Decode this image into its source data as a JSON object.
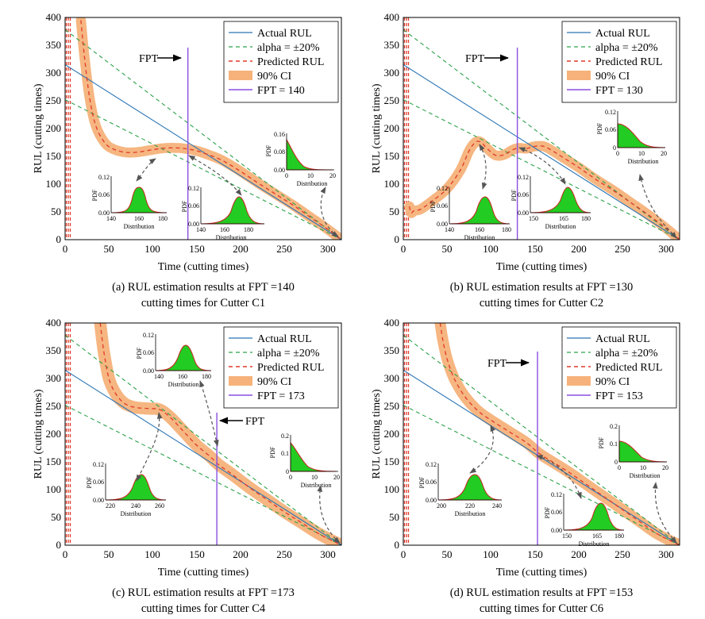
{
  "figure": {
    "colors": {
      "actual": "#2a75b5",
      "bounds": "#2ca24a",
      "predicted": "#e03a2a",
      "ci": "#f6b27a",
      "fpt": "#8a4fe0",
      "pdf_fill": "#22cc22",
      "pdf_line": "#cc2222",
      "arrow": "#555555"
    },
    "common": {
      "xlabel": "Time (cutting times)",
      "ylabel": "RUL (cutting times)",
      "xticks": [
        "0",
        "50",
        "100",
        "150",
        "200",
        "250",
        "300"
      ],
      "yticks": [
        "0",
        "50",
        "100",
        "150",
        "200",
        "250",
        "300",
        "350",
        "400"
      ],
      "inset_ylabel": "PDF",
      "inset_xlabel": "Distribution",
      "fpt_label": "FPT"
    },
    "legend": {
      "actual": "Actual RUL",
      "bounds": "alpha = ±20%",
      "predicted": "Predicted RUL",
      "ci": "90% CI"
    }
  },
  "chart_data": [
    {
      "type": "line",
      "title": "(a) RUL estimation results at FPT =140",
      "subtitle": "cutting times for Cutter C1",
      "xlabel": "Time (cutting times)",
      "ylabel": "RUL (cutting times)",
      "xlim": [
        0,
        315
      ],
      "ylim": [
        0,
        400
      ],
      "fpt": 140,
      "fpt_legend": "FPT = 140",
      "actual_rul": {
        "x": [
          0,
          315
        ],
        "y": [
          315,
          0
        ]
      },
      "upper_bound": {
        "x": [
          0,
          315
        ],
        "y": [
          378,
          0
        ]
      },
      "lower_bound": {
        "x": [
          0,
          315
        ],
        "y": [
          252,
          0
        ]
      },
      "predicted_rul": {
        "x": [
          18,
          22,
          28,
          35,
          45,
          55,
          70,
          85,
          100,
          115,
          130,
          140,
          150,
          165,
          180,
          200,
          220,
          240,
          260,
          280,
          300,
          315
        ],
        "y": [
          395,
          330,
          255,
          205,
          175,
          163,
          157,
          158,
          162,
          165,
          165,
          163,
          160,
          152,
          142,
          123,
          102,
          82,
          62,
          40,
          18,
          0
        ]
      },
      "ci_halfwidth": 9,
      "insets": [
        {
          "label": "left",
          "ymax": "0.12",
          "ymid": "0.06",
          "ymin": "0.00",
          "xticks": [
            "140",
            "160",
            "180"
          ],
          "skew": false
        },
        {
          "label": "mid",
          "ymax": "0.12",
          "ymid": "0.06",
          "ymin": "0.00",
          "xticks": [
            "140",
            "160",
            "180"
          ],
          "skew": false
        },
        {
          "label": "right",
          "ymax": "0.16",
          "ymid": "0.08",
          "ymin": "0.00",
          "xticks": [
            "0",
            "10",
            "20"
          ],
          "skew": true
        }
      ]
    },
    {
      "type": "line",
      "title": "(b) RUL estimation results at FPT =130",
      "subtitle": "cutting times for Cutter C2",
      "xlabel": "Time (cutting times)",
      "ylabel": "RUL (cutting times)",
      "xlim": [
        0,
        315
      ],
      "ylim": [
        0,
        400
      ],
      "fpt": 130,
      "fpt_legend": "FPT = 130",
      "actual_rul": {
        "x": [
          0,
          315
        ],
        "y": [
          315,
          0
        ]
      },
      "upper_bound": {
        "x": [
          0,
          315
        ],
        "y": [
          378,
          0
        ]
      },
      "lower_bound": {
        "x": [
          0,
          315
        ],
        "y": [
          252,
          0
        ]
      },
      "predicted_rul": {
        "x": [
          7,
          9,
          12,
          20,
          35,
          50,
          65,
          75,
          82,
          88,
          95,
          105,
          115,
          125,
          132,
          140,
          150,
          160,
          170,
          180,
          200,
          220,
          240,
          260,
          280,
          300,
          315
        ],
        "y": [
          60,
          48,
          52,
          55,
          72,
          92,
          125,
          160,
          175,
          176,
          165,
          152,
          153,
          162,
          165,
          164,
          168,
          168,
          160,
          150,
          130,
          108,
          88,
          66,
          44,
          20,
          0
        ]
      },
      "ci_halfwidth": 9,
      "insets": [
        {
          "label": "left",
          "ymax": "0.12",
          "ymid": "0.06",
          "ymin": "0.00",
          "xticks": [
            "140",
            "160",
            "180"
          ],
          "skew": false
        },
        {
          "label": "mid",
          "ymax": "0.12",
          "ymid": "0.06",
          "ymin": "0.00",
          "xticks": [
            "150",
            "165",
            "180"
          ],
          "skew": false
        },
        {
          "label": "right",
          "ymax": "0.12",
          "ymid": "0.06",
          "ymin": "0",
          "xticks": [
            "0",
            "10",
            "20"
          ],
          "skew": true
        }
      ]
    },
    {
      "type": "line",
      "title": "(c) RUL estimation results at FPT =173",
      "subtitle": "cutting times for Cutter C4",
      "xlabel": "Time (cutting times)",
      "ylabel": "RUL (cutting times)",
      "xlim": [
        0,
        315
      ],
      "ylim": [
        0,
        400
      ],
      "fpt": 173,
      "fpt_legend": "FPT = 173",
      "actual_rul": {
        "x": [
          0,
          315
        ],
        "y": [
          315,
          0
        ]
      },
      "upper_bound": {
        "x": [
          0,
          315
        ],
        "y": [
          378,
          0
        ]
      },
      "lower_bound": {
        "x": [
          0,
          315
        ],
        "y": [
          252,
          0
        ]
      },
      "predicted_rul": {
        "x": [
          40,
          44,
          50,
          58,
          68,
          80,
          95,
          108,
          120,
          135,
          150,
          165,
          175,
          190,
          210,
          230,
          250,
          270,
          290,
          315
        ],
        "y": [
          400,
          350,
          300,
          272,
          255,
          248,
          246,
          244,
          230,
          205,
          180,
          160,
          145,
          128,
          104,
          82,
          60,
          40,
          20,
          0
        ]
      },
      "ci_halfwidth": 11,
      "insets": [
        {
          "label": "left",
          "ymax": "0.12",
          "ymid": "0.06",
          "ymin": "0.00",
          "xticks": [
            "220",
            "240",
            "260"
          ],
          "skew": false
        },
        {
          "label": "top",
          "ymax": "0.12",
          "ymid": "0.06",
          "ymin": "0.00",
          "xticks": [
            "140",
            "160",
            "180"
          ],
          "skew": false
        },
        {
          "label": "right",
          "ymax": "0.2",
          "ymid": "0.1",
          "ymin": "0",
          "xticks": [
            "0",
            "10",
            "20"
          ],
          "skew": true
        }
      ]
    },
    {
      "type": "line",
      "title": "(d) RUL estimation results at FPT =153",
      "subtitle": "cutting times for Cutter C6",
      "xlabel": "Time (cutting times)",
      "ylabel": "RUL (cutting times)",
      "xlim": [
        0,
        315
      ],
      "ylim": [
        0,
        400
      ],
      "fpt": 153,
      "fpt_legend": "FPT = 153",
      "actual_rul": {
        "x": [
          0,
          315
        ],
        "y": [
          315,
          0
        ]
      },
      "upper_bound": {
        "x": [
          0,
          315
        ],
        "y": [
          378,
          0
        ]
      },
      "lower_bound": {
        "x": [
          0,
          315
        ],
        "y": [
          252,
          0
        ]
      },
      "predicted_rul": {
        "x": [
          42,
          45,
          50,
          58,
          70,
          85,
          100,
          120,
          140,
          155,
          170,
          190,
          210,
          230,
          250,
          270,
          290,
          315
        ],
        "y": [
          400,
          370,
          335,
          300,
          268,
          242,
          225,
          205,
          185,
          165,
          150,
          130,
          108,
          86,
          64,
          42,
          20,
          0
        ]
      },
      "ci_halfwidth": 10,
      "insets": [
        {
          "label": "left",
          "ymax": "0.12",
          "ymid": "0.06",
          "ymin": "0.00",
          "xticks": [
            "200",
            "220",
            "240"
          ],
          "skew": false
        },
        {
          "label": "mid",
          "ymax": "0.12",
          "ymid": "0.06",
          "ymin": "0.00",
          "xticks": [
            "150",
            "165",
            "180"
          ],
          "skew": false
        },
        {
          "label": "right",
          "ymax": "0.2",
          "ymid": "0.1",
          "ymin": "0",
          "xticks": [
            "0",
            "10",
            "20"
          ],
          "skew": true
        }
      ]
    }
  ]
}
